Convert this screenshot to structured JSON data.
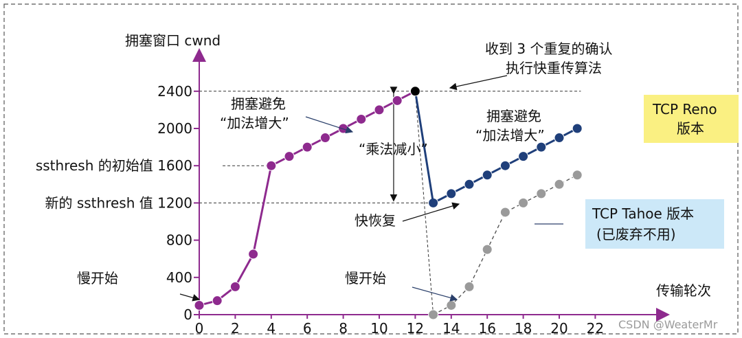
{
  "chart_data": {
    "type": "line",
    "ylabel": "拥塞窗口 cwnd",
    "xlabel": "传输轮次",
    "x_ticks": [
      0,
      2,
      4,
      6,
      8,
      10,
      12,
      14,
      16,
      18,
      20,
      22
    ],
    "y_ticks": [
      {
        "value": 0,
        "label": "0"
      },
      {
        "value": 400,
        "label": "400"
      },
      {
        "value": 800,
        "label": "800"
      },
      {
        "value": 1200,
        "label": "新的 ssthresh 值 1200"
      },
      {
        "value": 1600,
        "label": "ssthresh 的初始值 1600"
      },
      {
        "value": 2000,
        "label": "2000"
      },
      {
        "value": 2400,
        "label": "2400"
      }
    ],
    "xlim": [
      0,
      22
    ],
    "ylim": [
      0,
      2800
    ],
    "series": [
      {
        "name": "",
        "color": "#8e2a8e",
        "x": [
          0,
          1,
          2,
          3,
          4,
          5,
          6,
          7,
          8,
          9,
          10,
          11,
          12
        ],
        "y": [
          100,
          150,
          300,
          650,
          1600,
          1700,
          1800,
          1900,
          2000,
          2100,
          2200,
          2300,
          2400
        ]
      },
      {
        "name": "TCP Reno 版本",
        "color": "#1f3f7a",
        "x": [
          13,
          14,
          15,
          16,
          17,
          18,
          19,
          20,
          21
        ],
        "y": [
          1200,
          1300,
          1400,
          1500,
          1600,
          1700,
          1800,
          1900,
          2000
        ]
      },
      {
        "name": "TCP Tahoe 版本 (已废弃不用)",
        "color": "#888888",
        "x": [
          13,
          14,
          15,
          16,
          17,
          18,
          19,
          20,
          21
        ],
        "y": [
          0,
          100,
          300,
          700,
          1100,
          1200,
          1300,
          1400,
          1500
        ]
      }
    ]
  },
  "annotations": {
    "slow_start_1": "慢开始",
    "slow_start_2": "慢开始",
    "ca_1_line1": "拥塞避免",
    "ca_1_line2": "“加法增大”",
    "ca_2_line1": "拥塞避免",
    "ca_2_line2": "“加法增大”",
    "mult_decrease": "“乘法减小”",
    "fast_recovery": "快恢复",
    "dup_ack_line1": "收到 3 个重复的确认",
    "dup_ack_line2": "执行快重传算法"
  },
  "legend_boxes": {
    "reno_line1": "TCP Reno",
    "reno_line2": "版本",
    "tahoe_line1": "TCP Tahoe 版本",
    "tahoe_line2": "(已废弃不用)",
    "reno_color": "#faf082",
    "tahoe_color": "#cce8f8"
  },
  "watermark": "CSDN @WeaterMr"
}
